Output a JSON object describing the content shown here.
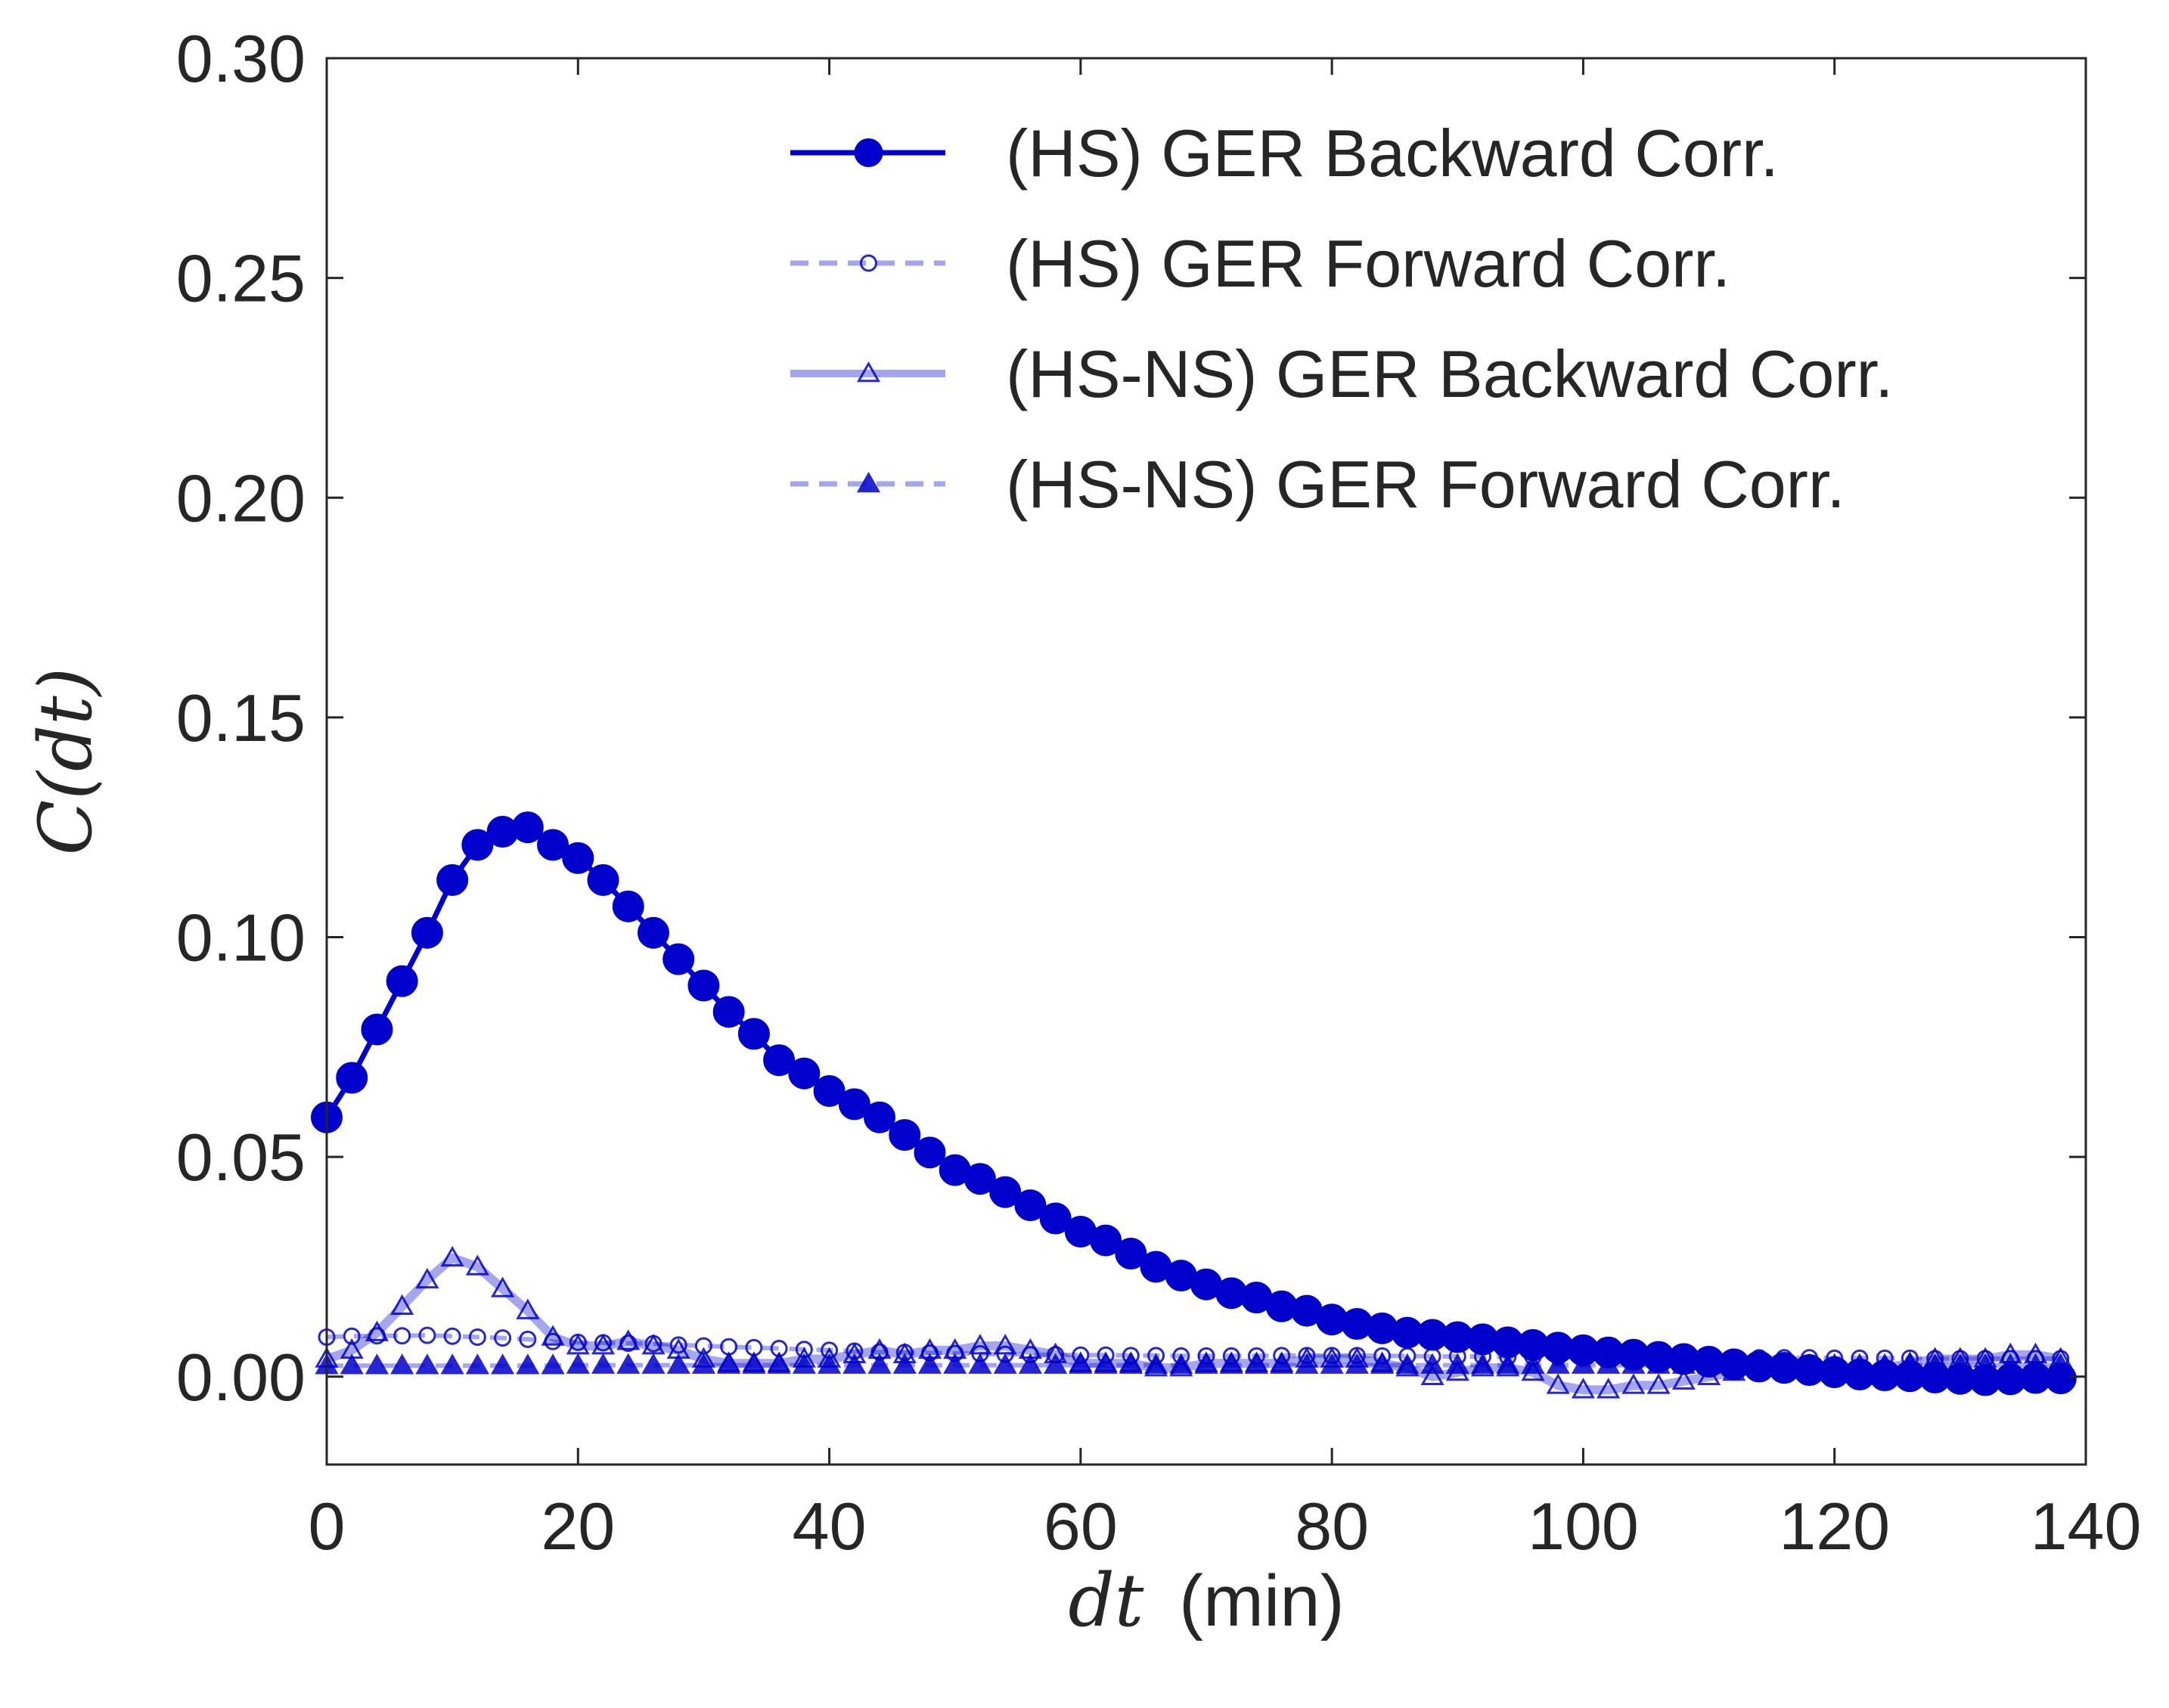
{
  "chart_data": {
    "type": "line",
    "title": "",
    "xlabel_math": "dt",
    "xlabel_unit": "(min)",
    "ylabel_math": "C(dt)",
    "xlim": [
      0,
      140
    ],
    "ylim": [
      -0.02,
      0.3
    ],
    "xticks": [
      0,
      20,
      40,
      60,
      80,
      100,
      120,
      140
    ],
    "xtick_labels": [
      "0",
      "20",
      "40",
      "60",
      "80",
      "100",
      "120",
      "140"
    ],
    "yticks": [
      0.0,
      0.05,
      0.1,
      0.15,
      0.2,
      0.25,
      0.3
    ],
    "ytick_labels": [
      "0.00",
      "0.05",
      "0.10",
      "0.15",
      "0.20",
      "0.25",
      "0.30"
    ],
    "grid": false,
    "legend_position": "top-right",
    "color": "#0000cc",
    "x": [
      0,
      2,
      4,
      6,
      8,
      10,
      12,
      14,
      16,
      18,
      20,
      22,
      24,
      26,
      28,
      30,
      32,
      34,
      36,
      38,
      40,
      42,
      44,
      46,
      48,
      50,
      52,
      54,
      56,
      58,
      60,
      62,
      64,
      66,
      68,
      70,
      72,
      74,
      76,
      78,
      80,
      82,
      84,
      86,
      88,
      90,
      92,
      94,
      96,
      98,
      100,
      102,
      104,
      106,
      108,
      110,
      112,
      114,
      116,
      118,
      120,
      122,
      124,
      126,
      128,
      130,
      132,
      134,
      136,
      138
    ],
    "series": [
      {
        "name": "(HS) GER Backward Corr.",
        "style": "solid",
        "marker": "circle-filled",
        "opacity": 1.0,
        "values": [
          0.059,
          0.068,
          0.079,
          0.09,
          0.101,
          0.113,
          0.121,
          0.124,
          0.125,
          0.121,
          0.118,
          0.113,
          0.107,
          0.101,
          0.095,
          0.089,
          0.083,
          0.078,
          0.072,
          0.069,
          0.065,
          0.062,
          0.059,
          0.055,
          0.051,
          0.047,
          0.045,
          0.042,
          0.039,
          0.036,
          0.033,
          0.031,
          0.028,
          0.025,
          0.023,
          0.021,
          0.019,
          0.018,
          0.016,
          0.015,
          0.013,
          0.012,
          0.011,
          0.01,
          0.0095,
          0.009,
          0.0085,
          0.0078,
          0.0072,
          0.0066,
          0.006,
          0.0055,
          0.005,
          0.0045,
          0.004,
          0.0034,
          0.0028,
          0.0023,
          0.002,
          0.0015,
          0.001,
          0.0005,
          0.0003,
          0.0001,
          -0.0002,
          -0.0005,
          -0.0008,
          -0.0006,
          -0.0003,
          -0.0004
        ]
      },
      {
        "name": "(HS) GER Forward Corr.",
        "style": "dashed",
        "marker": "circle-open",
        "opacity": 0.35,
        "values": [
          0.009,
          0.0092,
          0.0093,
          0.0093,
          0.0094,
          0.0092,
          0.009,
          0.0088,
          0.0085,
          0.008,
          0.0078,
          0.0077,
          0.0076,
          0.0075,
          0.0072,
          0.007,
          0.0068,
          0.0066,
          0.0064,
          0.0062,
          0.006,
          0.0058,
          0.0056,
          0.0055,
          0.0054,
          0.0053,
          0.0052,
          0.0051,
          0.005,
          0.005,
          0.0049,
          0.0049,
          0.0048,
          0.0048,
          0.0047,
          0.0047,
          0.0047,
          0.0047,
          0.0048,
          0.0048,
          0.0048,
          0.0048,
          0.0047,
          0.0047,
          0.0046,
          0.0046,
          0.0046,
          0.0045,
          0.0045,
          0.0045,
          0.0045,
          0.0045,
          0.0045,
          0.0044,
          0.0044,
          0.0044,
          0.0044,
          0.0043,
          0.0043,
          0.0043,
          0.0042,
          0.0042,
          0.0042,
          0.0042,
          0.0041,
          0.0041,
          0.0041,
          0.0041,
          0.0041,
          0.0041
        ]
      },
      {
        "name": "(HS-NS) GER Backward Corr.",
        "style": "solid",
        "marker": "triangle-open",
        "opacity": 0.35,
        "values": [
          0.004,
          0.006,
          0.01,
          0.016,
          0.022,
          0.027,
          0.025,
          0.02,
          0.015,
          0.009,
          0.007,
          0.007,
          0.008,
          0.007,
          0.006,
          0.004,
          0.003,
          0.003,
          0.003,
          0.004,
          0.004,
          0.005,
          0.006,
          0.005,
          0.006,
          0.006,
          0.007,
          0.007,
          0.006,
          0.005,
          0.003,
          0.003,
          0.003,
          0.002,
          0.002,
          0.003,
          0.003,
          0.003,
          0.003,
          0.004,
          0.004,
          0.004,
          0.003,
          0.002,
          0.0,
          0.001,
          0.002,
          0.002,
          0.001,
          -0.002,
          -0.003,
          -0.003,
          -0.002,
          -0.002,
          -0.001,
          0.0,
          0.001,
          0.002,
          0.003,
          0.002,
          0.001,
          0.001,
          0.002,
          0.003,
          0.004,
          0.004,
          0.004,
          0.005,
          0.005,
          0.004
        ]
      },
      {
        "name": "(HS-NS) GER Forward Corr.",
        "style": "dashed",
        "marker": "triangle-filled",
        "opacity": 0.35,
        "values": [
          0.0025,
          0.0025,
          0.0025,
          0.0025,
          0.0025,
          0.0025,
          0.0025,
          0.0025,
          0.0025,
          0.0025,
          0.0026,
          0.0026,
          0.0026,
          0.0026,
          0.0026,
          0.0026,
          0.0026,
          0.0026,
          0.0026,
          0.0026,
          0.0026,
          0.0026,
          0.0026,
          0.0026,
          0.0026,
          0.0026,
          0.0026,
          0.0026,
          0.0026,
          0.0026,
          0.0026,
          0.0026,
          0.0026,
          0.0026,
          0.0026,
          0.0026,
          0.0026,
          0.0026,
          0.0026,
          0.0026,
          0.0026,
          0.0026,
          0.0026,
          0.0026,
          0.0026,
          0.0026,
          0.0026,
          0.0026,
          0.0026,
          0.0026,
          0.0026,
          0.0026,
          0.0026,
          0.0026,
          0.0026,
          0.0026,
          0.0026,
          0.0026,
          0.0026,
          0.0026,
          0.0026,
          0.0026,
          0.0026,
          0.0026,
          0.0026,
          0.0026,
          0.0026,
          0.0026,
          0.0026,
          0.0026
        ]
      }
    ]
  }
}
